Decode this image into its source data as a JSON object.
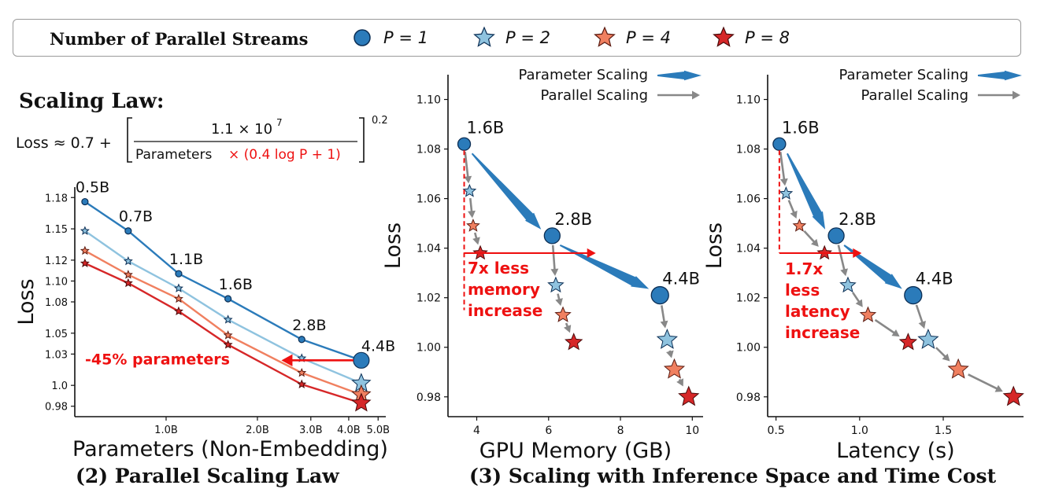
{
  "legend": {
    "title": "Number of Parallel Streams",
    "items": [
      {
        "label": "P = 1",
        "marker": "circle",
        "color": "#2b7bba"
      },
      {
        "label": "P = 2",
        "marker": "star",
        "color": "#8fc3df"
      },
      {
        "label": "P = 4",
        "marker": "star",
        "color": "#f08060"
      },
      {
        "label": "P = 8",
        "marker": "star",
        "color": "#d62728"
      }
    ]
  },
  "scaling_law": {
    "title": "Scaling Law:",
    "formula_lhs": "Loss ≈ 0.7 +",
    "numerator": "1.1 × 10",
    "numerator_exp": "7",
    "denominator_text": "Parameters",
    "denominator_red": "× (0.4 log P + 1)",
    "outer_exp": "0.2"
  },
  "captions": {
    "left": "(2) Parallel Scaling Law",
    "right": "(3) Scaling with Inference Space and Time Cost"
  },
  "colors": {
    "p1": "#2b7bba",
    "p2": "#8fc3df",
    "p4": "#f08060",
    "p8": "#d62728",
    "param_arrow": "#2b7bba",
    "parallel_arrow": "#888888",
    "annotation": "#ee1111"
  },
  "chart_data": [
    {
      "type": "line",
      "name": "scaling-law",
      "xlabel": "Parameters (Non-Embedding)",
      "ylabel": "Loss",
      "xscale": "log",
      "xlim": [
        0.5,
        5.3
      ],
      "ylim": [
        0.97,
        1.19
      ],
      "xticks": [
        {
          "v": 1.0,
          "label": "1.0B"
        },
        {
          "v": 2.0,
          "label": "2.0B"
        },
        {
          "v": 3.0,
          "label": "3.0B"
        },
        {
          "v": 4.0,
          "label": "4.0B"
        },
        {
          "v": 5.0,
          "label": "5.0B"
        }
      ],
      "yticks": [
        {
          "v": 0.98,
          "label": "0.98"
        },
        {
          "v": 1.0,
          "label": "1.0"
        },
        {
          "v": 1.03,
          "label": "1.03"
        },
        {
          "v": 1.05,
          "label": "1.05"
        },
        {
          "v": 1.08,
          "label": "1.08"
        },
        {
          "v": 1.1,
          "label": "1.10"
        },
        {
          "v": 1.12,
          "label": "1.12"
        },
        {
          "v": 1.15,
          "label": "1.15"
        },
        {
          "v": 1.18,
          "label": "1.18"
        }
      ],
      "x": [
        0.54,
        0.75,
        1.1,
        1.6,
        2.8,
        4.4
      ],
      "point_labels": [
        "0.5B",
        "0.7B",
        "1.1B",
        "1.6B",
        "2.8B",
        "4.4B"
      ],
      "series": [
        {
          "name": "P = 1",
          "values": [
            1.176,
            1.148,
            1.107,
            1.083,
            1.044,
            1.024
          ]
        },
        {
          "name": "P = 2",
          "values": [
            1.148,
            1.119,
            1.093,
            1.063,
            1.026,
            1.002
          ]
        },
        {
          "name": "P = 4",
          "values": [
            1.129,
            1.106,
            1.083,
            1.048,
            1.012,
            0.991
          ]
        },
        {
          "name": "P = 8",
          "values": [
            1.117,
            1.098,
            1.071,
            1.039,
            1.001,
            0.983
          ]
        }
      ],
      "annotation": {
        "text": "-45% parameters",
        "from": [
          4.4,
          1.024
        ],
        "to": [
          2.4,
          1.026
        ]
      }
    },
    {
      "type": "scatter",
      "name": "gpu-memory",
      "xlabel": "GPU Memory (GB)",
      "ylabel": "Loss",
      "xlim": [
        3.2,
        10.3
      ],
      "ylim": [
        0.972,
        1.11
      ],
      "xticks": [
        4,
        6,
        8,
        10
      ],
      "yticks": [
        0.98,
        1.0,
        1.02,
        1.04,
        1.06,
        1.08,
        1.1
      ],
      "legend_entries": [
        "Parameter Scaling",
        "Parallel Scaling"
      ],
      "groups": [
        {
          "label": "1.6B",
          "points": [
            [
              3.65,
              1.082
            ],
            [
              3.8,
              1.063
            ],
            [
              3.9,
              1.049
            ],
            [
              4.1,
              1.038
            ]
          ]
        },
        {
          "label": "2.8B",
          "points": [
            [
              6.1,
              1.045
            ],
            [
              6.2,
              1.025
            ],
            [
              6.4,
              1.013
            ],
            [
              6.7,
              1.002
            ]
          ]
        },
        {
          "label": "4.4B",
          "points": [
            [
              9.1,
              1.021
            ],
            [
              9.3,
              1.003
            ],
            [
              9.5,
              0.991
            ],
            [
              9.9,
              0.98
            ]
          ]
        }
      ],
      "annotation": {
        "text": "7x less memory increase",
        "lines": [
          "7x less",
          "memory",
          "increase"
        ],
        "from": [
          3.65,
          1.038
        ],
        "to": [
          6.7,
          1.038
        ],
        "drop_from": [
          3.65,
          1.082
        ],
        "drop_to": [
          3.65,
          1.015
        ]
      }
    },
    {
      "type": "scatter",
      "name": "latency",
      "xlabel": "Latency (s)",
      "ylabel": "Loss",
      "xlim": [
        0.45,
        1.98
      ],
      "ylim": [
        0.972,
        1.11
      ],
      "xticks": [
        {
          "v": 0.5,
          "label": "0.5"
        },
        {
          "v": 1.0,
          "label": "1.0"
        },
        {
          "v": 1.5,
          "label": "1.5"
        }
      ],
      "yticks": [
        0.98,
        1.0,
        1.02,
        1.04,
        1.06,
        1.08,
        1.1
      ],
      "legend_entries": [
        "Parameter Scaling",
        "Parallel Scaling"
      ],
      "groups": [
        {
          "label": "1.6B",
          "points": [
            [
              0.52,
              1.082
            ],
            [
              0.56,
              1.062
            ],
            [
              0.64,
              1.049
            ],
            [
              0.79,
              1.038
            ]
          ]
        },
        {
          "label": "2.8B",
          "points": [
            [
              0.86,
              1.045
            ],
            [
              0.93,
              1.025
            ],
            [
              1.05,
              1.013
            ],
            [
              1.29,
              1.002
            ]
          ]
        },
        {
          "label": "4.4B",
          "points": [
            [
              1.32,
              1.021
            ],
            [
              1.41,
              1.003
            ],
            [
              1.59,
              0.991
            ],
            [
              1.92,
              0.98
            ]
          ]
        }
      ],
      "annotation": {
        "text": "1.7x less latency increase",
        "lines": [
          "1.7x",
          "less",
          "latency",
          "increase"
        ],
        "from": [
          0.52,
          1.038
        ],
        "to": [
          0.88,
          1.038
        ],
        "drop_from": [
          0.52,
          1.082
        ],
        "drop_to": [
          0.52,
          1.038
        ]
      }
    }
  ]
}
